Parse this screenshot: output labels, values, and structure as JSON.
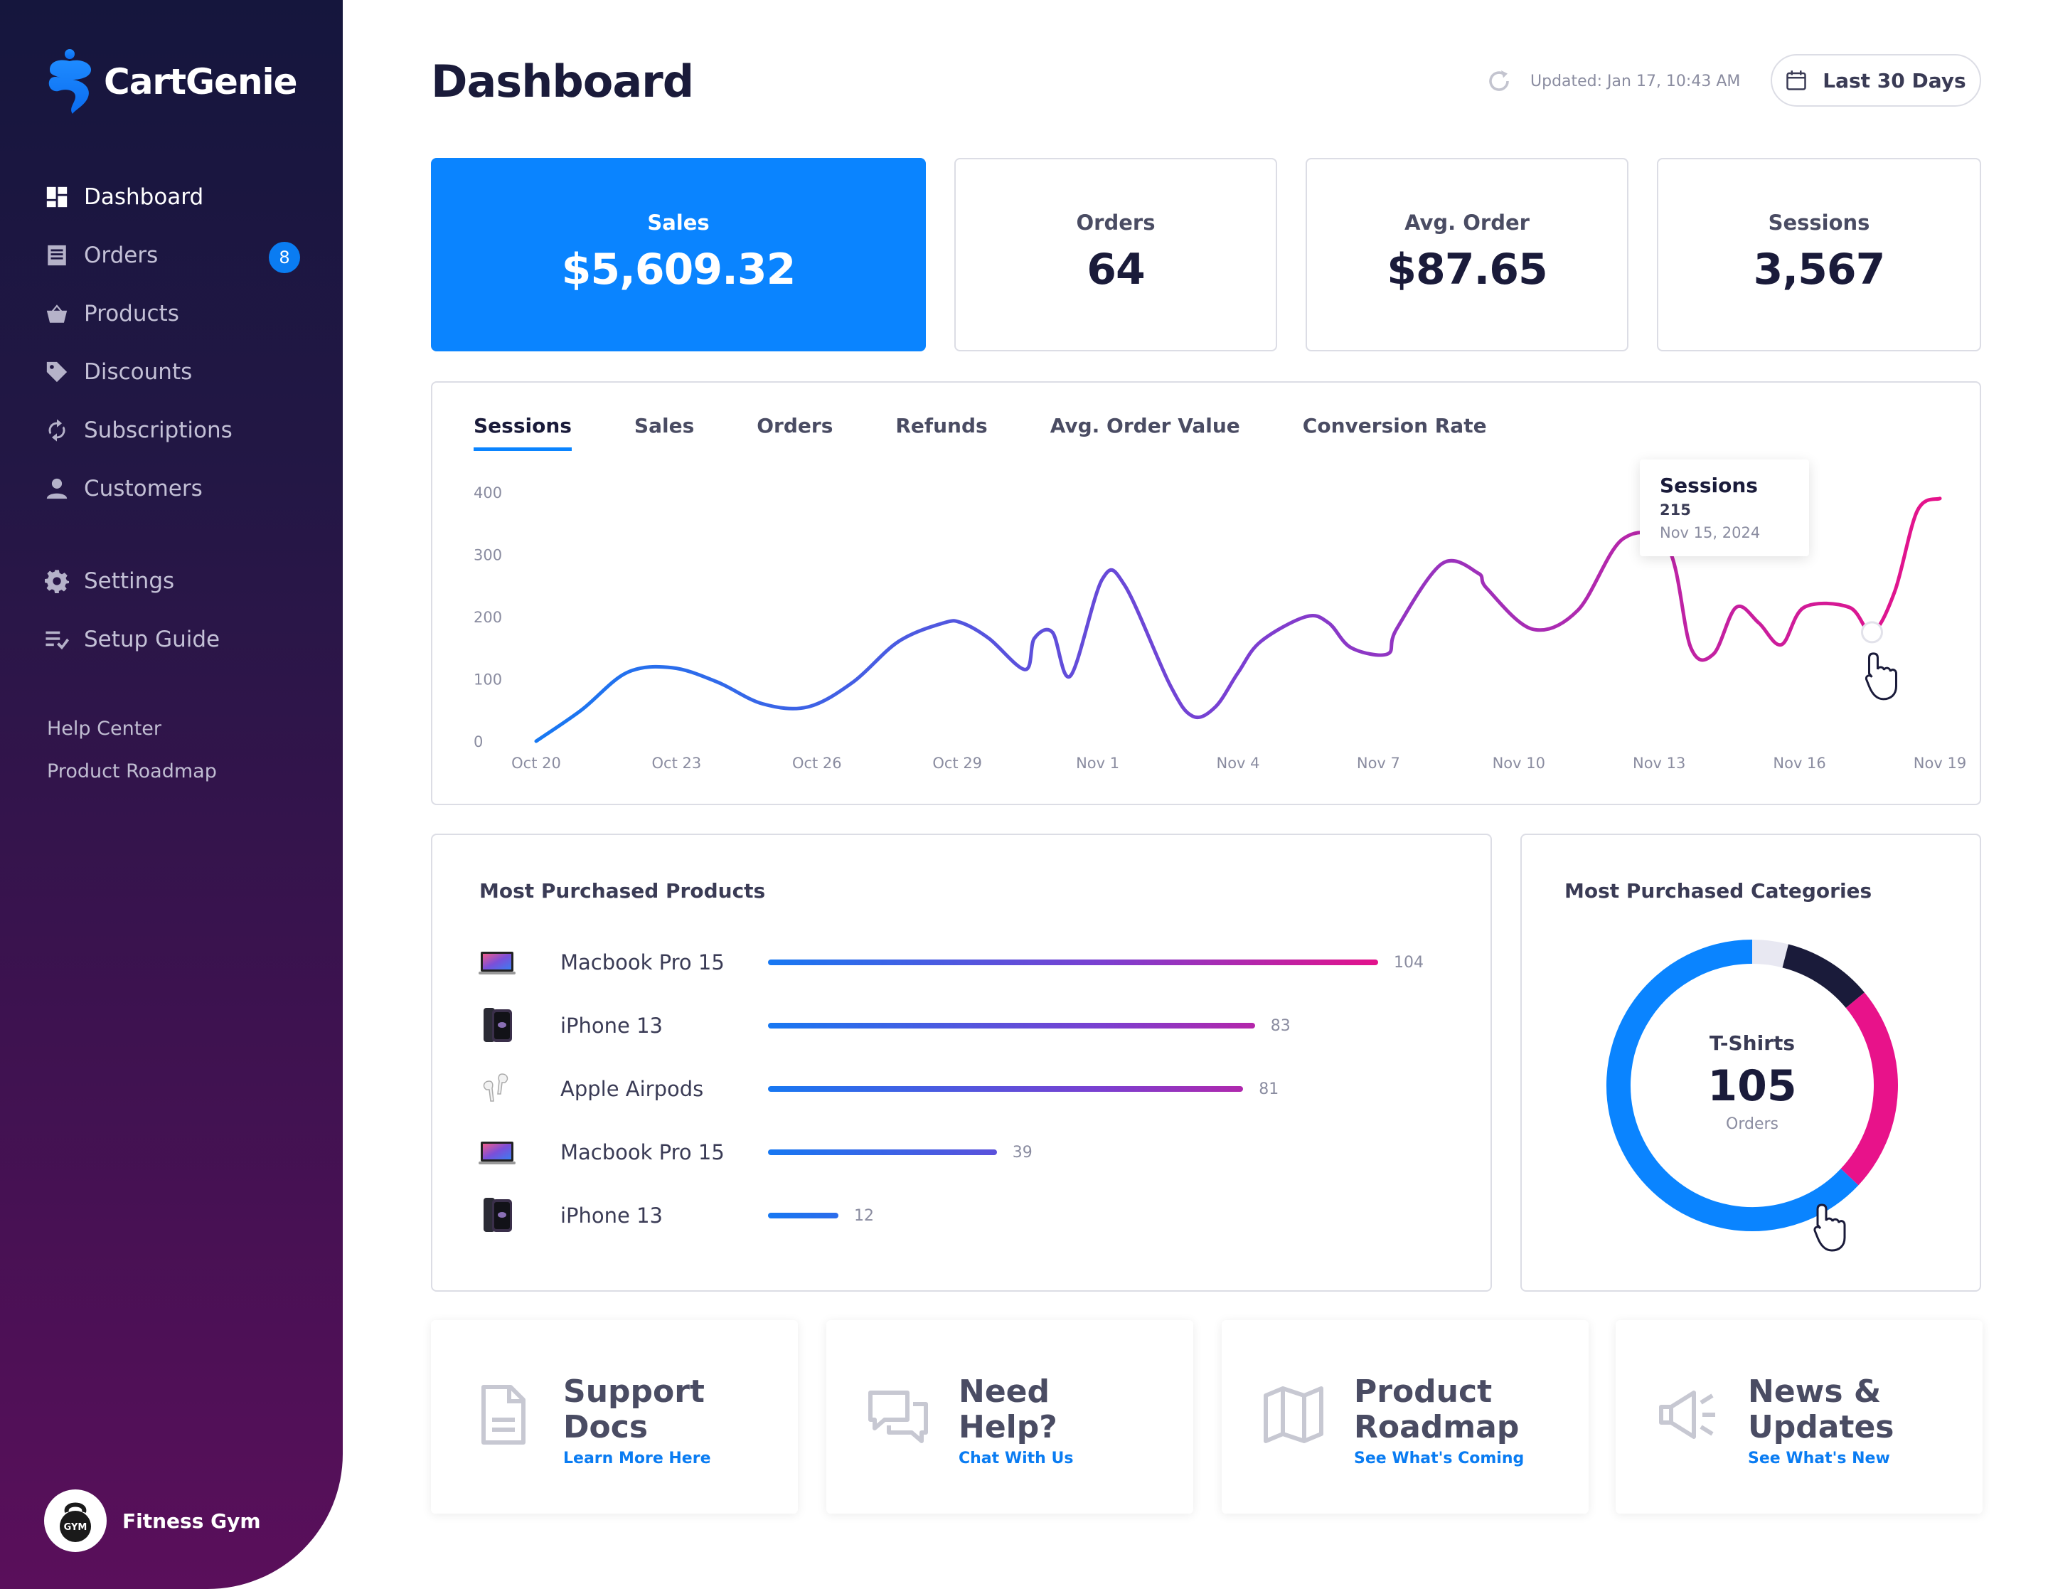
{
  "app": {
    "brand": "CartGenie",
    "page_title": "Dashboard",
    "updated": "Updated: Jan 17, 10:43 AM",
    "date_range": "Last 30 Days"
  },
  "sidebar": {
    "items": [
      {
        "label": "Dashboard",
        "icon": "dashboard-icon",
        "active": true
      },
      {
        "label": "Orders",
        "icon": "orders-icon",
        "badge": "8"
      },
      {
        "label": "Products",
        "icon": "basket-icon"
      },
      {
        "label": "Discounts",
        "icon": "tag-icon"
      },
      {
        "label": "Subscriptions",
        "icon": "refresh-icon"
      },
      {
        "label": "Customers",
        "icon": "person-icon"
      },
      {
        "label": "Settings",
        "icon": "gear-icon"
      },
      {
        "label": "Setup Guide",
        "icon": "checklist-icon"
      }
    ],
    "links": [
      "Help Center",
      "Product Roadmap"
    ],
    "store": {
      "name": "Fitness Gym",
      "logo_text": "GYM"
    }
  },
  "stats": [
    {
      "label": "Sales",
      "value": "$5,609.32"
    },
    {
      "label": "Orders",
      "value": "64"
    },
    {
      "label": "Avg. Order",
      "value": "$87.65"
    },
    {
      "label": "Sessions",
      "value": "3,567"
    }
  ],
  "chart_tabs": [
    "Sessions",
    "Sales",
    "Orders",
    "Refunds",
    "Avg. Order Value",
    "Conversion Rate"
  ],
  "chart_data": {
    "type": "line",
    "series_label": "Sessions",
    "ylim": [
      0,
      400
    ],
    "yticks": [
      "0",
      "100",
      "200",
      "300",
      "400"
    ],
    "xticks": [
      "Oct 20",
      "Oct 23",
      "Oct 26",
      "Oct 29",
      "Nov 1",
      "Nov 4",
      "Nov 7",
      "Nov 10",
      "Nov 13",
      "Nov 16",
      "Nov 19"
    ],
    "x": [
      0,
      1,
      2,
      3,
      4,
      5,
      6,
      7,
      8,
      9,
      9.4,
      10,
      10.8,
      11,
      11.4,
      11.8,
      12.5,
      13,
      14,
      14.5,
      15,
      15.5,
      16,
      17,
      17.5,
      18,
      18.8,
      19,
      20,
      20.8,
      21,
      22,
      23,
      24,
      25,
      25.5,
      26,
      26.5,
      27,
      27.5,
      28,
      29,
      29.5,
      30,
      30.5,
      31
    ],
    "values": [
      0,
      50,
      110,
      118,
      95,
      60,
      55,
      95,
      160,
      190,
      190,
      165,
      115,
      165,
      175,
      105,
      260,
      250,
      90,
      40,
      55,
      110,
      160,
      200,
      190,
      150,
      140,
      180,
      285,
      270,
      245,
      180,
      210,
      325,
      310,
      150,
      140,
      215,
      190,
      155,
      215,
      215,
      175,
      240,
      370,
      390
    ],
    "tooltip": {
      "title": "Sessions",
      "value": "215",
      "date": "Nov 15, 2024"
    }
  },
  "products": {
    "title": "Most Purchased Products",
    "items": [
      {
        "name": "Macbook Pro 15",
        "value": 104,
        "label": "104",
        "thumb": "laptop-icon"
      },
      {
        "name": "iPhone 13",
        "value": 83,
        "label": "83",
        "thumb": "phone-icon"
      },
      {
        "name": "Apple Airpods",
        "value": 81,
        "label": "81",
        "thumb": "airpods-icon"
      },
      {
        "name": "Macbook Pro 15",
        "value": 39,
        "label": "39",
        "thumb": "laptop-icon"
      },
      {
        "name": "iPhone 13",
        "value": 12,
        "label": "12",
        "thumb": "phone-icon"
      }
    ]
  },
  "categories": {
    "title": "Most Purchased Categories",
    "center_name": "T-Shirts",
    "center_value": "105",
    "center_unit": "Orders",
    "segments": [
      {
        "fraction": 0.04,
        "color": "#e8e8f2"
      },
      {
        "fraction": 0.1,
        "color": "#1a1b3a"
      },
      {
        "fraction": 0.23,
        "color": "#e8128a"
      },
      {
        "fraction": 0.63,
        "color": "#0a84ff"
      }
    ]
  },
  "resources": [
    {
      "title_line1": "Support",
      "title_line2": "Docs",
      "link": "Learn More Here",
      "icon": "document-icon"
    },
    {
      "title_line1": "Need",
      "title_line2": "Help?",
      "link": "Chat With Us",
      "icon": "chat-icon"
    },
    {
      "title_line1": "Product",
      "title_line2": "Roadmap",
      "link": "See What's Coming",
      "icon": "map-icon"
    },
    {
      "title_line1": "News &",
      "title_line2": "Updates",
      "link": "See What's New",
      "icon": "megaphone-icon"
    }
  ]
}
